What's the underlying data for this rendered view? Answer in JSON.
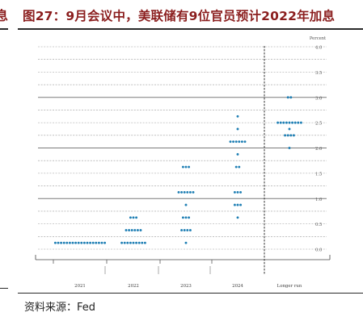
{
  "page": {
    "left_fragment": "息",
    "title": "图27：9月会议中，美联储有9位官员预计2022年加息",
    "source": "资料来源：Fed"
  },
  "colors": {
    "title": "#8b1e1e",
    "dot": "#1f7fb4",
    "grid": "#9a9a9a",
    "grid_major": "#7a7a7a",
    "axis": "#444444"
  },
  "chart_data": {
    "type": "scatter",
    "title": "",
    "ylabel": "Percent",
    "xlabel": "",
    "ylim": [
      0,
      4.0
    ],
    "yticks": [
      "0.0",
      "0.5",
      "1.0",
      "1.5",
      "2.0",
      "2.5",
      "3.0",
      "3.5",
      "4.0"
    ],
    "major_lines": [
      1.0,
      2.0,
      3.0
    ],
    "grid": true,
    "categories": [
      "2021",
      "2022",
      "2023",
      "2024",
      "Longer run"
    ],
    "separator_after": "2024",
    "series": [
      {
        "category": "2021",
        "points": [
          {
            "y": 0.125,
            "count": 18
          }
        ]
      },
      {
        "category": "2022",
        "points": [
          {
            "y": 0.125,
            "count": 9
          },
          {
            "y": 0.375,
            "count": 6
          },
          {
            "y": 0.625,
            "count": 3
          }
        ]
      },
      {
        "category": "2023",
        "points": [
          {
            "y": 0.125,
            "count": 1
          },
          {
            "y": 0.375,
            "count": 4
          },
          {
            "y": 0.625,
            "count": 3
          },
          {
            "y": 0.875,
            "count": 1
          },
          {
            "y": 1.125,
            "count": 6
          },
          {
            "y": 1.625,
            "count": 3
          }
        ]
      },
      {
        "category": "2024",
        "points": [
          {
            "y": 0.625,
            "count": 1
          },
          {
            "y": 0.875,
            "count": 3
          },
          {
            "y": 1.125,
            "count": 3
          },
          {
            "y": 1.625,
            "count": 2
          },
          {
            "y": 1.875,
            "count": 1
          },
          {
            "y": 2.125,
            "count": 6
          },
          {
            "y": 2.375,
            "count": 1
          },
          {
            "y": 2.625,
            "count": 1
          }
        ]
      },
      {
        "category": "Longer run",
        "points": [
          {
            "y": 2.0,
            "count": 1
          },
          {
            "y": 2.25,
            "count": 4
          },
          {
            "y": 2.375,
            "count": 1
          },
          {
            "y": 2.5,
            "count": 9
          },
          {
            "y": 3.0,
            "count": 2
          }
        ]
      }
    ]
  }
}
